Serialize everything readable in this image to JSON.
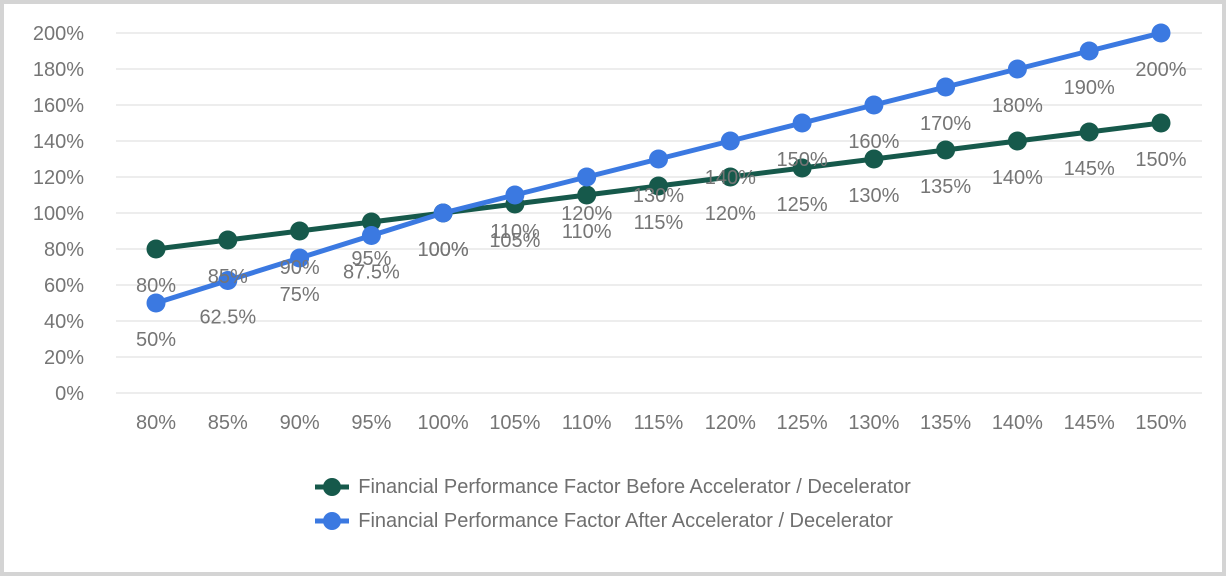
{
  "window": {
    "background": "#ffffff",
    "frame_border_color": "#d4d4d4"
  },
  "chart_data": {
    "type": "line",
    "title": "",
    "xlabel": "",
    "ylabel": "",
    "grid": true,
    "grid_color": "#e7e7e7",
    "label_color": "#757575",
    "legend_position": "bottom",
    "categories": [
      "80%",
      "85%",
      "90%",
      "95%",
      "100%",
      "105%",
      "110%",
      "115%",
      "120%",
      "125%",
      "130%",
      "135%",
      "140%",
      "145%",
      "150%"
    ],
    "x_values": [
      80,
      85,
      90,
      95,
      100,
      105,
      110,
      115,
      120,
      125,
      130,
      135,
      140,
      145,
      150
    ],
    "y_axis": {
      "ticks": [
        "0%",
        "20%",
        "40%",
        "60%",
        "80%",
        "100%",
        "120%",
        "140%",
        "160%",
        "180%",
        "200%"
      ],
      "tick_values": [
        0,
        20,
        40,
        60,
        80,
        100,
        120,
        140,
        160,
        180,
        200
      ],
      "range": [
        0,
        200
      ]
    },
    "series": [
      {
        "name": "Financial Performance Factor Before Accelerator / Decelerator",
        "color": "#16594b",
        "values": [
          80,
          85,
          90,
          95,
          100,
          105,
          110,
          115,
          120,
          125,
          130,
          135,
          140,
          145,
          150
        ],
        "labels": [
          "80%",
          "85%",
          "90%",
          "95%",
          "100%",
          "105%",
          "110%",
          "115%",
          "120%",
          "125%",
          "130%",
          "135%",
          "140%",
          "145%",
          "150%"
        ]
      },
      {
        "name": "Financial Performance Factor After Accelerator / Decelerator",
        "color": "#3b79e1",
        "values": [
          50,
          62.5,
          75,
          87.5,
          100,
          110,
          120,
          130,
          140,
          150,
          160,
          170,
          180,
          190,
          200
        ],
        "labels": [
          "50%",
          "62.5%",
          "75%",
          "87.5%",
          "100%",
          "110%",
          "120%",
          "130%",
          "140%",
          "150%",
          "160%",
          "170%",
          "180%",
          "190%",
          "200%"
        ]
      }
    ]
  }
}
